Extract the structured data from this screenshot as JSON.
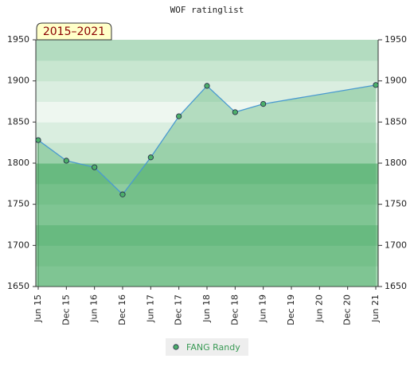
{
  "chart_data": {
    "type": "line",
    "title": "WOF ratinglist",
    "subtitle": "2015–2021",
    "xticks": [
      "Jun 15",
      "Dec 15",
      "Jun 16",
      "Dec 16",
      "Jun 17",
      "Dec 17",
      "Jun 18",
      "Dec 18",
      "Jun 19",
      "Dec 19",
      "Jun 20",
      "Dec 20",
      "Jun 21"
    ],
    "x": [
      "Jun 15",
      "Dec 15",
      "Jun 16",
      "Dec 16",
      "Jun 17",
      "Dec 17",
      "Jun 18",
      "Dec 18",
      "Jun 19",
      "Jun 21"
    ],
    "series": [
      {
        "name": "FANG Randy",
        "color": "#4a9ad0",
        "marker_color": "#4caf6a",
        "values": [
          1828,
          1803,
          1795,
          1762,
          1807,
          1857,
          1894,
          1862,
          1872,
          1895
        ]
      }
    ],
    "ylim": [
      1650,
      1950
    ],
    "yticks": [
      1650,
      1700,
      1750,
      1800,
      1850,
      1900,
      1950
    ],
    "y2lim": [
      1650,
      1950
    ],
    "y2ticks": [
      1650,
      1700,
      1750,
      1800,
      1850,
      1900,
      1950
    ],
    "legend": "bottom"
  }
}
